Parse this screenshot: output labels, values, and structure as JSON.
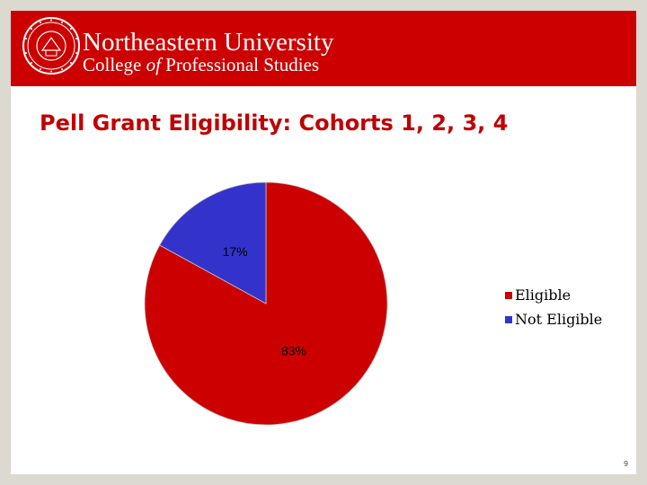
{
  "header": {
    "university": "Northeastern University",
    "college_prefix": "College ",
    "college_of": "of",
    "college_suffix": " Professional Studies",
    "brand_color": "#cc0000",
    "logo_icon": "university-seal-icon"
  },
  "slide": {
    "title": "Pell Grant Eligibility:  Cohorts 1, 2, 3, 4",
    "page_number": "9"
  },
  "chart_data": {
    "type": "pie",
    "title": "",
    "slices": [
      {
        "name": "Eligible",
        "value": 83,
        "label": "83%",
        "color": "#cc0000"
      },
      {
        "name": "Not Eligible",
        "value": 17,
        "label": "17%",
        "color": "#3333cc"
      }
    ],
    "legend": {
      "placement": "right",
      "entries": [
        "Eligible",
        "Not Eligible"
      ]
    }
  }
}
